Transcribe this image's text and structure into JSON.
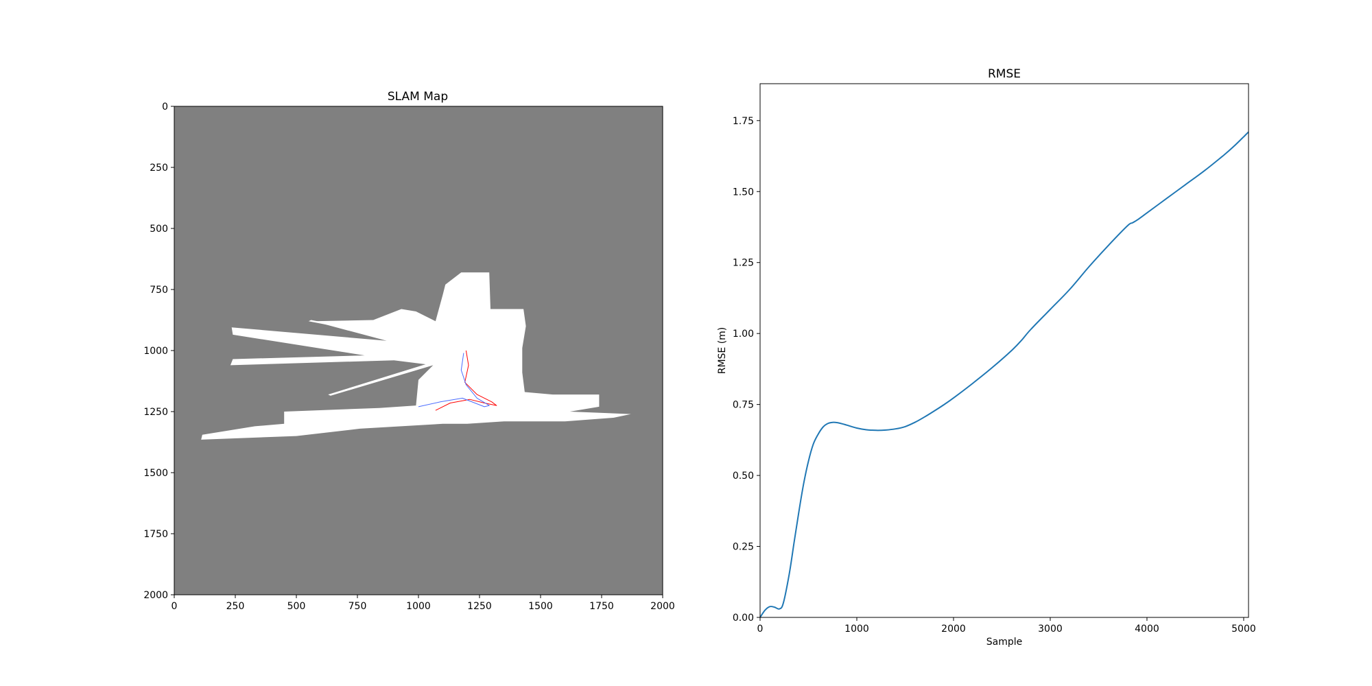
{
  "chart_data": [
    {
      "type": "heatmap",
      "title": "SLAM Map",
      "xlabel": "",
      "ylabel": "",
      "xlim": [
        0,
        2000
      ],
      "ylim": [
        2000,
        0
      ],
      "xticks": [
        0,
        250,
        500,
        750,
        1000,
        1250,
        1500,
        1750,
        2000
      ],
      "yticks": [
        0,
        250,
        500,
        750,
        1000,
        1250,
        1500,
        1750,
        2000
      ],
      "grid": false,
      "colors": {
        "unknown": "#808080",
        "free": "#ffffff",
        "trajectory_a": "#ff0000",
        "trajectory_b": "#4a6cff"
      },
      "map_regions": [
        {
          "kind": "free_space",
          "points": [
            [
              1100,
              770
            ],
            [
              1110,
              730
            ],
            [
              1175,
              680
            ],
            [
              1290,
              680
            ],
            [
              1295,
              830
            ],
            [
              1320,
              830
            ],
            [
              1430,
              830
            ],
            [
              1440,
              900
            ],
            [
              1425,
              990
            ],
            [
              1425,
              1090
            ],
            [
              1435,
              1170
            ],
            [
              1550,
              1180
            ],
            [
              1740,
              1180
            ],
            [
              1740,
              1230
            ],
            [
              1620,
              1250
            ],
            [
              1870,
              1260
            ],
            [
              1800,
              1275
            ],
            [
              1600,
              1290
            ],
            [
              1350,
              1290
            ],
            [
              1200,
              1300
            ],
            [
              1100,
              1300
            ],
            [
              760,
              1320
            ],
            [
              500,
              1350
            ],
            [
              110,
              1365
            ],
            [
              115,
              1345
            ],
            [
              330,
              1310
            ],
            [
              450,
              1300
            ],
            [
              450,
              1250
            ],
            [
              840,
              1235
            ],
            [
              990,
              1225
            ],
            [
              1000,
              1120
            ],
            [
              1060,
              1060
            ],
            [
              900,
              1040
            ],
            [
              230,
              1060
            ],
            [
              240,
              1035
            ],
            [
              780,
              1020
            ],
            [
              240,
              935
            ],
            [
              235,
              905
            ],
            [
              870,
              960
            ],
            [
              570,
              880
            ],
            [
              815,
              875
            ],
            [
              930,
              830
            ],
            [
              990,
              840
            ],
            [
              1070,
              880
            ]
          ]
        },
        {
          "kind": "ray",
          "points": [
            [
              1050,
              1050
            ],
            [
              630,
              1180
            ],
            [
              640,
              1185
            ],
            [
              1060,
              1060
            ]
          ]
        },
        {
          "kind": "ray",
          "points": [
            [
              1020,
              970
            ],
            [
              550,
              880
            ],
            [
              560,
              875
            ],
            [
              1030,
              960
            ]
          ]
        }
      ],
      "series": [
        {
          "points": [
            [
              1195,
              1000
            ],
            [
              1205,
              1060
            ],
            [
              1190,
              1130
            ],
            [
              1240,
              1180
            ],
            [
              1300,
              1210
            ],
            [
              1320,
              1225
            ],
            [
              1270,
              1215
            ],
            [
              1210,
              1200
            ],
            [
              1130,
              1215
            ],
            [
              1070,
              1245
            ]
          ]
        },
        {
          "points": [
            [
              1185,
              1010
            ],
            [
              1175,
              1080
            ],
            [
              1195,
              1140
            ],
            [
              1240,
              1195
            ],
            [
              1290,
              1225
            ],
            [
              1270,
              1230
            ],
            [
              1180,
              1195
            ],
            [
              1090,
              1210
            ],
            [
              1000,
              1230
            ]
          ]
        }
      ]
    },
    {
      "type": "line",
      "title": "RMSE",
      "xlabel": "Sample",
      "ylabel": "RMSE (m)",
      "xlim": [
        0,
        5050
      ],
      "ylim": [
        0,
        1.88
      ],
      "xticks": [
        0,
        1000,
        2000,
        3000,
        4000,
        5000
      ],
      "yticks": [
        "0.00",
        "0.25",
        "0.50",
        "0.75",
        "1.00",
        "1.25",
        "1.50",
        "1.75"
      ],
      "grid": false,
      "series": [
        {
          "color": "#1f77b4",
          "x": [
            0,
            50,
            100,
            150,
            200,
            240,
            300,
            350,
            400,
            450,
            500,
            550,
            600,
            650,
            700,
            750,
            800,
            850,
            900,
            1000,
            1100,
            1200,
            1300,
            1400,
            1500,
            1600,
            1700,
            1800,
            1900,
            2000,
            2200,
            2400,
            2600,
            2700,
            2800,
            3000,
            3200,
            3400,
            3600,
            3800,
            3850,
            3900,
            4000,
            4200,
            4400,
            4600,
            4800,
            4900,
            5000,
            5050
          ],
          "y": [
            0.0,
            0.025,
            0.038,
            0.036,
            0.03,
            0.05,
            0.15,
            0.26,
            0.37,
            0.47,
            0.55,
            0.61,
            0.645,
            0.67,
            0.683,
            0.687,
            0.686,
            0.682,
            0.677,
            0.667,
            0.661,
            0.659,
            0.66,
            0.664,
            0.672,
            0.687,
            0.706,
            0.727,
            0.749,
            0.773,
            0.825,
            0.88,
            0.94,
            0.975,
            1.015,
            1.085,
            1.155,
            1.235,
            1.31,
            1.38,
            1.39,
            1.4,
            1.425,
            1.475,
            1.525,
            1.575,
            1.63,
            1.66,
            1.693,
            1.71
          ]
        }
      ]
    }
  ]
}
